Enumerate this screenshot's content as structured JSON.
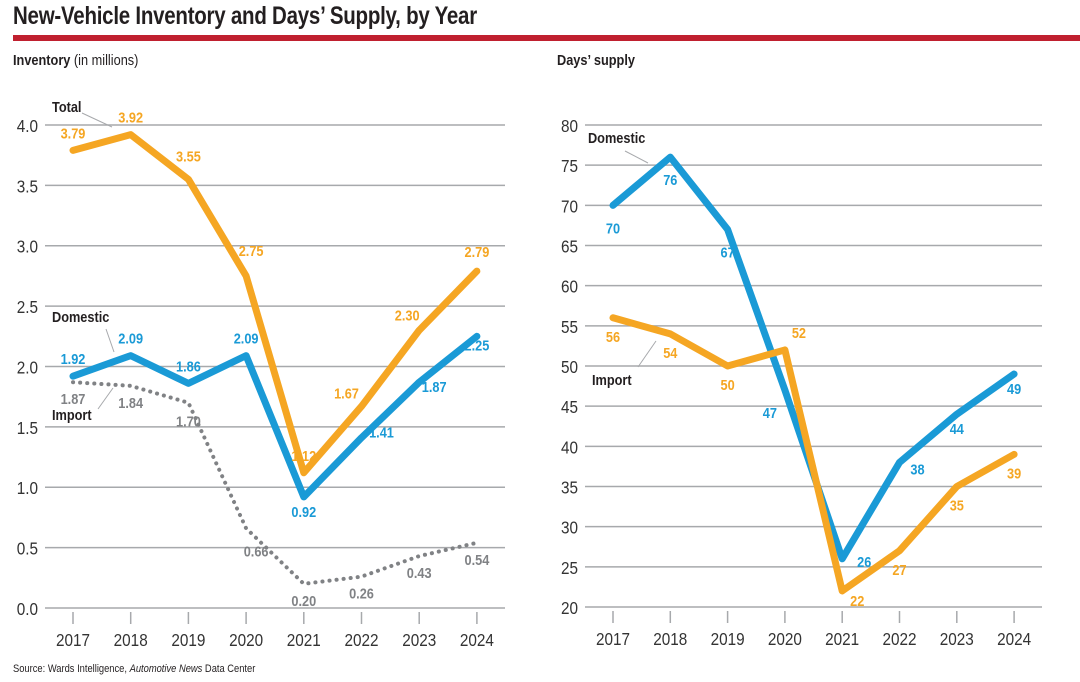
{
  "title": "New-Vehicle Inventory and Days’ Supply, by Year",
  "source_prefix": "Source: Wards Intelligence, ",
  "source_italic": "Automotive News",
  "source_suffix": " Data Center",
  "colors": {
    "accent_rule": "#c0202f",
    "total": "#f5a623",
    "domestic": "#1a9ad6",
    "import_inventory": "#808285",
    "import_days": "#f5a623",
    "grid": "#a7a9ac"
  },
  "chart_data": [
    {
      "type": "line",
      "title": "Inventory",
      "title_note": "(in millions)",
      "xlabel": "",
      "ylabel": "Inventory (in millions)",
      "categories": [
        "2017",
        "2018",
        "2019",
        "2020",
        "2021",
        "2022",
        "2023",
        "2024"
      ],
      "ylim": [
        0,
        4.0
      ],
      "yticks": [
        "0.0",
        "0.5",
        "1.0",
        "1.5",
        "2.0",
        "2.5",
        "3.0",
        "3.5",
        "4.0"
      ],
      "ytick_values": [
        0,
        0.5,
        1.0,
        1.5,
        2.0,
        2.5,
        3.0,
        3.5,
        4.0
      ],
      "grid": true,
      "series": [
        {
          "name": "Total",
          "style": "solid",
          "color": "#f5a623",
          "values": [
            3.79,
            3.92,
            3.55,
            2.75,
            1.12,
            1.67,
            2.3,
            2.79
          ],
          "labels": [
            "3.79",
            "3.92",
            "3.55",
            "2.75",
            "1.12",
            "1.67",
            "2.30",
            "2.79"
          ]
        },
        {
          "name": "Domestic",
          "style": "solid",
          "color": "#1a9ad6",
          "values": [
            1.92,
            2.09,
            1.86,
            2.09,
            0.92,
            1.41,
            1.87,
            2.25
          ],
          "labels": [
            "1.92",
            "2.09",
            "1.86",
            "2.09",
            "0.92",
            "1.41",
            "1.87",
            "2.25"
          ]
        },
        {
          "name": "Import",
          "style": "dotted",
          "color": "#808285",
          "values": [
            1.87,
            1.84,
            1.7,
            0.66,
            0.2,
            0.26,
            0.43,
            0.54
          ],
          "labels": [
            "1.87",
            "1.84",
            "1.70",
            "0.66",
            "0.20",
            "0.26",
            "0.43",
            "0.54"
          ]
        }
      ]
    },
    {
      "type": "line",
      "title": "Days’ supply",
      "xlabel": "",
      "ylabel": "Days’ supply",
      "categories": [
        "2017",
        "2018",
        "2019",
        "2020",
        "2021",
        "2022",
        "2023",
        "2024"
      ],
      "ylim": [
        20,
        80
      ],
      "yticks": [
        "20",
        "25",
        "30",
        "35",
        "40",
        "45",
        "50",
        "55",
        "60",
        "65",
        "70",
        "75",
        "80"
      ],
      "ytick_values": [
        20,
        25,
        30,
        35,
        40,
        45,
        50,
        55,
        60,
        65,
        70,
        75,
        80
      ],
      "grid": true,
      "series": [
        {
          "name": "Domestic",
          "style": "solid",
          "color": "#1a9ad6",
          "values": [
            70,
            76,
            67,
            47,
            26,
            38,
            44,
            49
          ],
          "labels": [
            "70",
            "76",
            "67",
            "47",
            "26",
            "38",
            "44",
            "49"
          ]
        },
        {
          "name": "Import",
          "style": "solid",
          "color": "#f5a623",
          "values": [
            56,
            54,
            50,
            52,
            22,
            27,
            35,
            39
          ],
          "labels": [
            "56",
            "54",
            "50",
            "52",
            "22",
            "27",
            "35",
            "39"
          ]
        }
      ]
    }
  ]
}
